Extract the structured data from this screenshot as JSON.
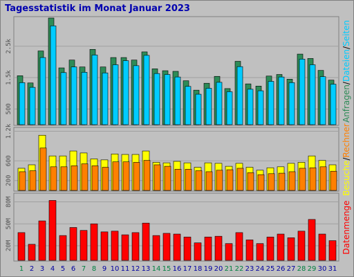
{
  "title": "Tagesstatistik im Monat Januar 2023",
  "colors": {
    "anfragen": "#2e8b57",
    "dateien": "#00ccff",
    "seiten": "#00ccff",
    "rechner": "#ff8000",
    "besuche": "#ffff00",
    "datenmenge": "#ff0000",
    "title": "#0000b0",
    "weekend": "#008040",
    "weekday": "#0000a0"
  },
  "chart_data": [
    {
      "type": "bar",
      "panel": "hits",
      "categories": [
        "1",
        "2",
        "3",
        "4",
        "5",
        "6",
        "7",
        "8",
        "9",
        "10",
        "11",
        "12",
        "13",
        "14",
        "15",
        "16",
        "17",
        "18",
        "19",
        "20",
        "21",
        "22",
        "23",
        "24",
        "25",
        "26",
        "27",
        "28",
        "29",
        "30",
        "31"
      ],
      "weekend_days": [
        "1",
        "7",
        "8",
        "14",
        "15",
        "21",
        "22",
        "28",
        "29"
      ],
      "y_ticks": [
        "500",
        "1.5k",
        "2.5k"
      ],
      "y_tick_values": [
        500,
        1500,
        2500
      ],
      "ylim": [
        0,
        3400
      ],
      "series": [
        {
          "name": "Anfragen",
          "values": [
            1560,
            1330,
            2350,
            3400,
            1810,
            2060,
            1840,
            2400,
            1840,
            2140,
            2140,
            2060,
            2320,
            1780,
            1720,
            1700,
            1400,
            1100,
            1320,
            1540,
            1150,
            2020,
            1300,
            1230,
            1550,
            1600,
            1450,
            2250,
            2110,
            1730,
            1420
          ]
        },
        {
          "name": "Dateien",
          "values": [
            1340,
            1190,
            2140,
            3150,
            1660,
            1840,
            1670,
            2220,
            1650,
            1910,
            2040,
            1880,
            2210,
            1630,
            1600,
            1520,
            1220,
            970,
            1160,
            1350,
            1050,
            1850,
            1130,
            1080,
            1380,
            1520,
            1340,
            2090,
            1910,
            1530,
            1290
          ]
        },
        {
          "name": "Seiten",
          "values": [
            1340,
            1190,
            2140,
            3150,
            1660,
            1840,
            1670,
            2220,
            1650,
            1910,
            2040,
            1880,
            2210,
            1630,
            1600,
            1520,
            1220,
            970,
            1160,
            1350,
            1050,
            1850,
            1130,
            1080,
            1380,
            1520,
            1340,
            2090,
            1910,
            1530,
            1290
          ]
        }
      ],
      "legend": [
        "Anfragen",
        "/",
        "Dateien",
        "/",
        "Seiten"
      ]
    },
    {
      "type": "bar",
      "panel": "visits",
      "categories": [
        "1",
        "2",
        "3",
        "4",
        "5",
        "6",
        "7",
        "8",
        "9",
        "10",
        "11",
        "12",
        "13",
        "14",
        "15",
        "16",
        "17",
        "18",
        "19",
        "20",
        "21",
        "22",
        "23",
        "24",
        "25",
        "26",
        "27",
        "28",
        "29",
        "30",
        "31"
      ],
      "y_ticks": [
        "200",
        "600",
        "1.2k"
      ],
      "y_tick_values": [
        200,
        600,
        1200
      ],
      "ylim": [
        0,
        1250
      ],
      "series": [
        {
          "name": "Besuche",
          "values": [
            450,
            520,
            1120,
            700,
            700,
            800,
            760,
            640,
            620,
            740,
            730,
            730,
            800,
            570,
            560,
            590,
            560,
            470,
            560,
            550,
            490,
            550,
            470,
            410,
            460,
            480,
            550,
            570,
            700,
            610,
            520
          ]
        },
        {
          "name": "Rechner",
          "values": [
            380,
            400,
            860,
            480,
            480,
            500,
            540,
            500,
            470,
            580,
            580,
            570,
            610,
            520,
            490,
            430,
            430,
            400,
            380,
            410,
            420,
            450,
            360,
            320,
            340,
            350,
            380,
            450,
            460,
            480,
            390
          ]
        }
      ],
      "legend": [
        "Besuche",
        "/",
        "Rechner"
      ]
    },
    {
      "type": "bar",
      "panel": "volume",
      "categories": [
        "1",
        "2",
        "3",
        "4",
        "5",
        "6",
        "7",
        "8",
        "9",
        "10",
        "11",
        "12",
        "13",
        "14",
        "15",
        "16",
        "17",
        "18",
        "19",
        "20",
        "21",
        "22",
        "23",
        "24",
        "25",
        "26",
        "27",
        "28",
        "29",
        "30",
        "31"
      ],
      "y_ticks": [
        "20M",
        "50M",
        "80M"
      ],
      "y_tick_values": [
        20,
        50,
        80
      ],
      "ylim": [
        0,
        90
      ],
      "series": [
        {
          "name": "Datenmenge",
          "values": [
            38,
            22,
            54,
            82,
            34,
            45,
            41,
            50,
            39,
            40,
            35,
            38,
            51,
            34,
            37,
            36,
            32,
            24,
            32,
            33,
            23,
            38,
            28,
            23,
            32,
            36,
            31,
            40,
            56,
            36,
            27
          ]
        }
      ],
      "legend": [
        "Datenmenge"
      ]
    }
  ]
}
